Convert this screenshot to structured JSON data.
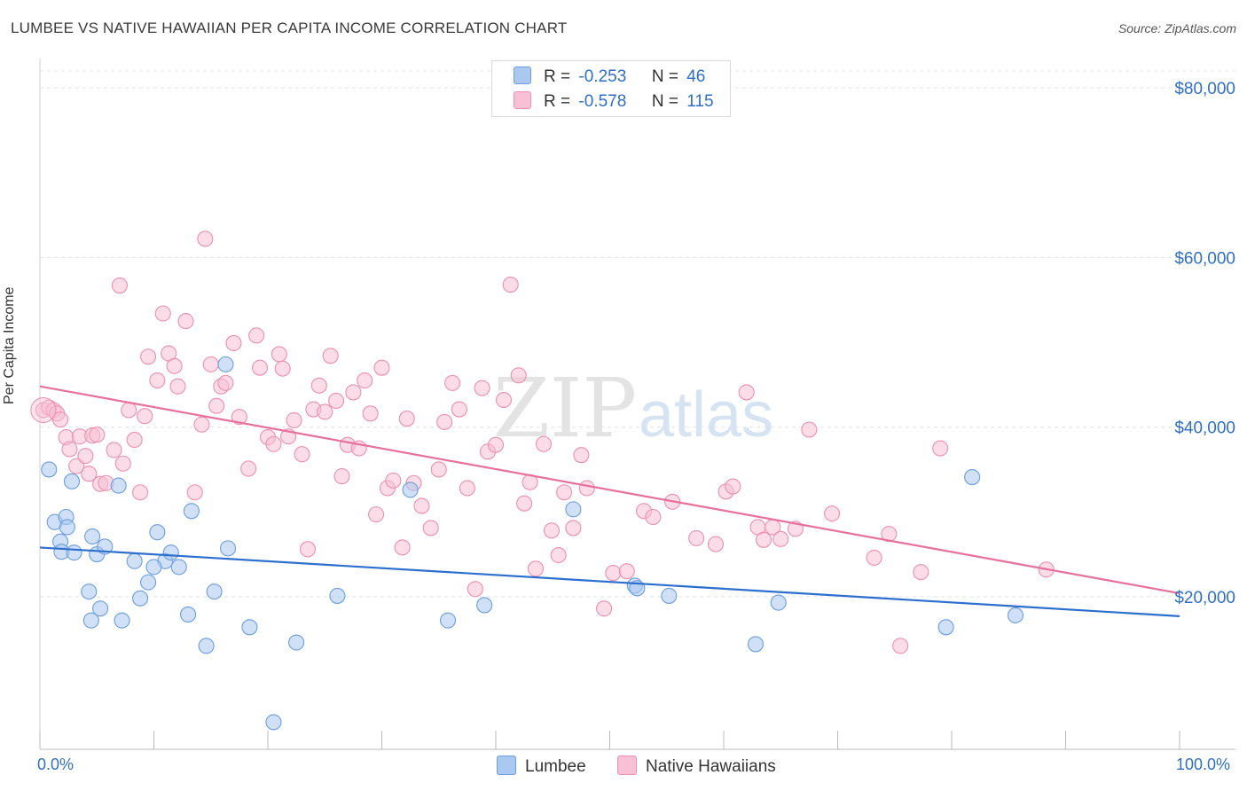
{
  "header": {
    "title": "LUMBEE VS NATIVE HAWAIIAN PER CAPITA INCOME CORRELATION CHART",
    "source": "Source: ZipAtlas.com"
  },
  "stats_legend": {
    "rows": [
      {
        "r_label": "R =",
        "r_value": "-0.253",
        "n_label": "N =",
        "n_value": "46",
        "color": "#aac8f0",
        "border": "#6b9de0"
      },
      {
        "r_label": "R =",
        "r_value": "-0.578",
        "n_label": "N =",
        "n_value": "115",
        "color": "#f8c0d4",
        "border": "#ee8fb0"
      }
    ]
  },
  "bottom_legend": {
    "items": [
      {
        "label": "Lumbee",
        "color": "#aac8f0",
        "border": "#6b9de0"
      },
      {
        "label": "Native Hawaiians",
        "color": "#f8c0d4",
        "border": "#ee8fb0"
      }
    ]
  },
  "watermark": {
    "left": "ZIP",
    "right": "atlas"
  },
  "chart_data": {
    "type": "scatter",
    "title": "LUMBEE VS NATIVE HAWAIIAN PER CAPITA INCOME CORRELATION CHART",
    "xlabel": "",
    "ylabel": "Per Capita Income",
    "x_tick_labels": [
      "0.0%",
      "100.0%"
    ],
    "y_tick_labels": [
      "$20,000",
      "$40,000",
      "$60,000",
      "$80,000"
    ],
    "y_ticks": [
      20000,
      40000,
      60000,
      80000
    ],
    "xlim": [
      0,
      100
    ],
    "ylim": [
      2000,
      82000
    ],
    "grid": "horizontal dashed",
    "legend_position": "top-center and bottom",
    "series": [
      {
        "name": "Lumbee",
        "color": "#6b9de0",
        "fill": "#aac8f0",
        "line_color": "#2c6fcf",
        "trend": {
          "x0": 0,
          "y0": 25800,
          "x1": 100,
          "y1": 17700
        },
        "points": [
          [
            0.8,
            35000
          ],
          [
            1.3,
            28800
          ],
          [
            1.8,
            26500
          ],
          [
            1.9,
            25300
          ],
          [
            2.3,
            29400
          ],
          [
            2.4,
            28200
          ],
          [
            2.8,
            33600
          ],
          [
            3.0,
            25200
          ],
          [
            4.3,
            20600
          ],
          [
            4.5,
            17200
          ],
          [
            4.6,
            27100
          ],
          [
            5.0,
            25000
          ],
          [
            5.3,
            18600
          ],
          [
            5.7,
            25900
          ],
          [
            6.9,
            33100
          ],
          [
            7.2,
            17200
          ],
          [
            8.3,
            24200
          ],
          [
            8.8,
            19800
          ],
          [
            9.5,
            21700
          ],
          [
            10.3,
            27600
          ],
          [
            11.0,
            24200
          ],
          [
            11.5,
            25200
          ],
          [
            12.2,
            23500
          ],
          [
            13.0,
            17900
          ],
          [
            13.3,
            30100
          ],
          [
            14.6,
            14200
          ],
          [
            15.3,
            20600
          ],
          [
            16.3,
            47400
          ],
          [
            16.5,
            25700
          ],
          [
            18.4,
            16400
          ],
          [
            20.5,
            5200
          ],
          [
            22.5,
            14600
          ],
          [
            26.1,
            20100
          ],
          [
            32.5,
            32600
          ],
          [
            35.8,
            17200
          ],
          [
            39.0,
            19000
          ],
          [
            46.8,
            30300
          ],
          [
            52.2,
            21300
          ],
          [
            52.4,
            21000
          ],
          [
            55.2,
            20100
          ],
          [
            62.8,
            14400
          ],
          [
            64.8,
            19300
          ],
          [
            79.5,
            16400
          ],
          [
            81.8,
            34100
          ],
          [
            85.6,
            17800
          ],
          [
            10.0,
            23500
          ]
        ]
      },
      {
        "name": "Native Hawaiians",
        "color": "#ee8fb0",
        "fill": "#f8c0d4",
        "line_color": "#e8709c",
        "trend": {
          "x0": 0,
          "y0": 44800,
          "x1": 100,
          "y1": 20400
        },
        "points": [
          [
            0.3,
            42000
          ],
          [
            0.8,
            42300
          ],
          [
            1.2,
            42000
          ],
          [
            1.5,
            41600
          ],
          [
            1.8,
            40900
          ],
          [
            2.3,
            38800
          ],
          [
            2.6,
            37400
          ],
          [
            3.2,
            35400
          ],
          [
            3.5,
            38900
          ],
          [
            4.0,
            36600
          ],
          [
            4.3,
            34500
          ],
          [
            4.6,
            39000
          ],
          [
            5.0,
            39100
          ],
          [
            5.3,
            33300
          ],
          [
            5.8,
            33400
          ],
          [
            6.5,
            37300
          ],
          [
            7.0,
            56700
          ],
          [
            7.3,
            35700
          ],
          [
            7.8,
            42000
          ],
          [
            8.3,
            38500
          ],
          [
            8.8,
            32300
          ],
          [
            9.2,
            41300
          ],
          [
            9.5,
            48300
          ],
          [
            10.3,
            45500
          ],
          [
            10.8,
            53400
          ],
          [
            11.3,
            48700
          ],
          [
            11.8,
            47200
          ],
          [
            12.1,
            44800
          ],
          [
            12.8,
            52500
          ],
          [
            13.6,
            32300
          ],
          [
            14.2,
            40300
          ],
          [
            14.5,
            62200
          ],
          [
            15.0,
            47400
          ],
          [
            15.5,
            42500
          ],
          [
            15.9,
            44800
          ],
          [
            16.3,
            45200
          ],
          [
            17.0,
            49900
          ],
          [
            17.5,
            41200
          ],
          [
            18.3,
            35100
          ],
          [
            19.0,
            50800
          ],
          [
            19.3,
            47000
          ],
          [
            20.0,
            38800
          ],
          [
            20.5,
            38000
          ],
          [
            21.0,
            48600
          ],
          [
            21.3,
            46900
          ],
          [
            21.8,
            38900
          ],
          [
            22.3,
            40800
          ],
          [
            23.0,
            36800
          ],
          [
            23.5,
            25600
          ],
          [
            24.0,
            42100
          ],
          [
            24.5,
            44900
          ],
          [
            25.0,
            41800
          ],
          [
            25.5,
            48400
          ],
          [
            26.0,
            43100
          ],
          [
            26.5,
            34200
          ],
          [
            27.0,
            37900
          ],
          [
            27.5,
            44100
          ],
          [
            28.0,
            37500
          ],
          [
            28.5,
            45500
          ],
          [
            29.0,
            41600
          ],
          [
            29.5,
            29700
          ],
          [
            30.0,
            47000
          ],
          [
            30.5,
            32800
          ],
          [
            31.0,
            33700
          ],
          [
            31.8,
            25800
          ],
          [
            32.2,
            41000
          ],
          [
            32.8,
            33400
          ],
          [
            33.5,
            30700
          ],
          [
            34.3,
            28100
          ],
          [
            35.0,
            35000
          ],
          [
            35.5,
            40600
          ],
          [
            36.2,
            45200
          ],
          [
            36.8,
            42100
          ],
          [
            37.5,
            32800
          ],
          [
            38.2,
            20900
          ],
          [
            38.8,
            44600
          ],
          [
            39.3,
            37100
          ],
          [
            40.0,
            37900
          ],
          [
            40.7,
            43200
          ],
          [
            41.3,
            56800
          ],
          [
            42.0,
            46100
          ],
          [
            42.5,
            31000
          ],
          [
            43.0,
            33500
          ],
          [
            43.5,
            23300
          ],
          [
            44.2,
            38000
          ],
          [
            44.9,
            27800
          ],
          [
            45.5,
            24900
          ],
          [
            46.0,
            32300
          ],
          [
            46.8,
            28100
          ],
          [
            47.5,
            36700
          ],
          [
            48.0,
            32800
          ],
          [
            49.5,
            18600
          ],
          [
            50.3,
            22800
          ],
          [
            51.5,
            23000
          ],
          [
            53.0,
            30100
          ],
          [
            53.8,
            29400
          ],
          [
            55.5,
            31200
          ],
          [
            57.6,
            26900
          ],
          [
            59.3,
            26200
          ],
          [
            60.2,
            32400
          ],
          [
            60.8,
            33000
          ],
          [
            62.0,
            44100
          ],
          [
            63.0,
            28200
          ],
          [
            63.5,
            26700
          ],
          [
            64.3,
            28200
          ],
          [
            65.0,
            26800
          ],
          [
            66.3,
            28000
          ],
          [
            67.5,
            39700
          ],
          [
            69.5,
            29800
          ],
          [
            73.2,
            24600
          ],
          [
            74.5,
            27400
          ],
          [
            75.5,
            14200
          ],
          [
            79.0,
            37500
          ],
          [
            88.3,
            23200
          ],
          [
            77.3,
            22900
          ]
        ]
      }
    ]
  }
}
